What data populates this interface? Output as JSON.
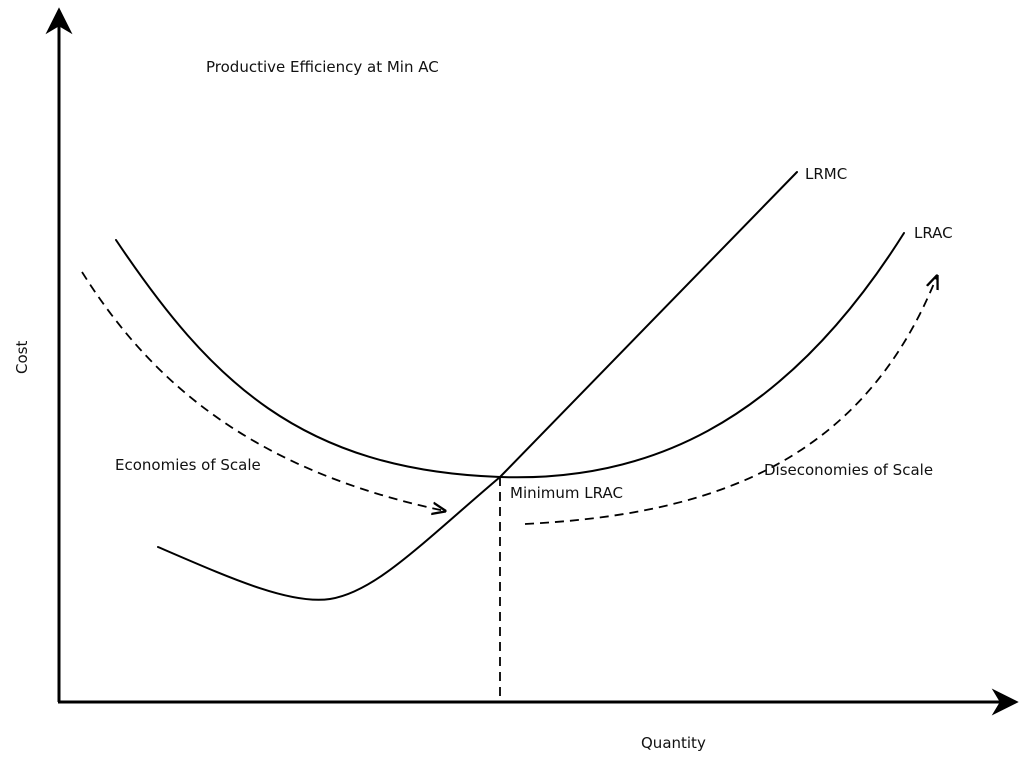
{
  "diagram": {
    "title": "Productive Efficiency at Min AC",
    "x_axis_label": "Quantity",
    "y_axis_label": "Cost",
    "curves": {
      "lrmc": "LRMC",
      "lrac": "LRAC"
    },
    "annotations": {
      "minimum": "Minimum LRAC",
      "economies": "Economies of Scale",
      "diseconomies": "Diseconomies of Scale"
    }
  }
}
